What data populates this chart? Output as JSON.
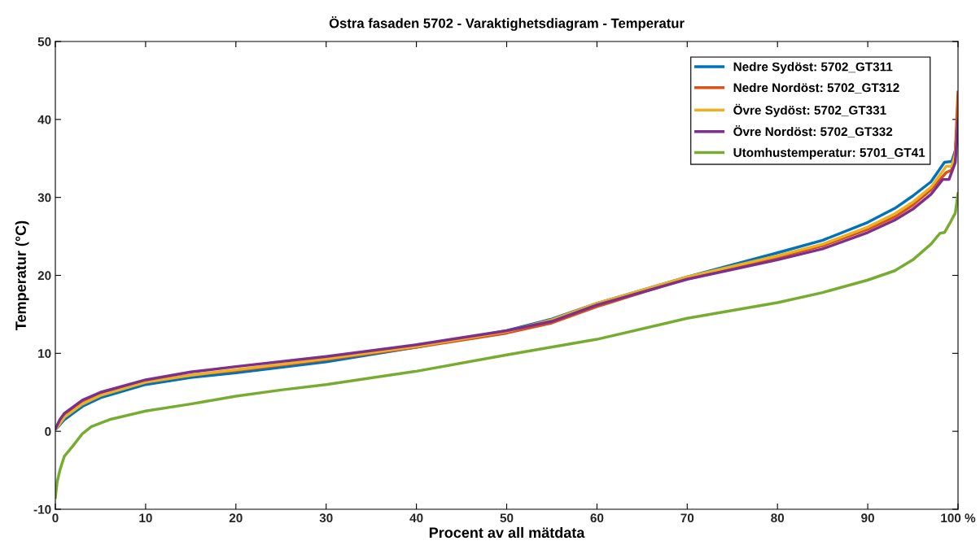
{
  "chart_data": {
    "type": "line",
    "title": "Östra fasaden 5702 - Varaktighetsdiagram - Temperatur",
    "xlabel": "Procent av all mätdata",
    "ylabel": "Temperatur (°C)",
    "xlim": [
      0,
      100
    ],
    "ylim": [
      -10,
      50
    ],
    "xticks": [
      0,
      10,
      20,
      30,
      40,
      50,
      60,
      70,
      80,
      90,
      {
        "value": 100,
        "label": "100 %"
      }
    ],
    "yticks": [
      -10,
      0,
      10,
      20,
      30,
      40,
      50
    ],
    "grid": false,
    "legend": "top right",
    "marker": "none",
    "line_style": "solid",
    "series": [
      {
        "name": "Nedre Sydöst: 5702_GT311",
        "color": "#0072bd",
        "x": [
          0,
          1,
          3,
          5,
          10,
          15,
          20,
          30,
          40,
          50,
          55,
          60,
          70,
          80,
          85,
          90,
          93,
          95,
          97,
          98.5,
          99.3,
          99.7,
          100
        ],
        "values": [
          0.2,
          1.5,
          3.2,
          4.3,
          6.0,
          6.9,
          7.5,
          8.9,
          10.8,
          12.9,
          14.4,
          16.4,
          19.8,
          22.9,
          24.5,
          26.8,
          28.6,
          30.2,
          32.0,
          34.5,
          34.6,
          36,
          40
        ]
      },
      {
        "name": "Nedre Nordöst: 5702_GT312",
        "color": "#d95319",
        "x": [
          0,
          1,
          3,
          5,
          10,
          15,
          20,
          30,
          40,
          50,
          55,
          60,
          70,
          80,
          85,
          90,
          93,
          95,
          97,
          98.7,
          99.3,
          99.7,
          100
        ],
        "values": [
          0.3,
          2.0,
          3.6,
          4.7,
          6.3,
          7.2,
          7.8,
          9.2,
          10.8,
          12.6,
          13.9,
          16.0,
          19.6,
          22.3,
          23.8,
          25.9,
          27.5,
          29.0,
          31.0,
          33.2,
          33.5,
          36,
          43.5
        ]
      },
      {
        "name": "Övre Sydöst: 5702_GT331",
        "color": "#edb120",
        "x": [
          0,
          1,
          3,
          5,
          10,
          15,
          20,
          30,
          40,
          50,
          55,
          60,
          70,
          80,
          85,
          90,
          93,
          95,
          97,
          98.7,
          99.3,
          99.7,
          100
        ],
        "values": [
          0.2,
          1.8,
          3.5,
          4.6,
          6.3,
          7.2,
          7.9,
          9.3,
          10.9,
          12.8,
          14.3,
          16.4,
          19.8,
          22.5,
          24.0,
          26.2,
          27.9,
          29.4,
          31.3,
          34.0,
          34.0,
          35.5,
          40
        ]
      },
      {
        "name": "Övre Nordöst: 5702_GT332",
        "color": "#7e2f8e",
        "x": [
          0,
          0.5,
          1,
          3,
          5,
          10,
          15,
          20,
          30,
          40,
          50,
          55,
          60,
          70,
          80,
          85,
          90,
          93,
          95,
          97,
          98.3,
          99,
          99.7,
          100
        ],
        "values": [
          0.3,
          1.5,
          2.3,
          4.0,
          5.0,
          6.6,
          7.6,
          8.3,
          9.6,
          11.1,
          12.9,
          14.1,
          16.2,
          19.5,
          22.0,
          23.4,
          25.5,
          27.1,
          28.5,
          30.4,
          32.3,
          32.3,
          34.5,
          40
        ]
      },
      {
        "name": "Utomhustemperatur: 5701_GT41",
        "color": "#77ac30",
        "x": [
          0,
          0.2,
          0.5,
          1,
          2,
          3,
          4,
          6,
          10,
          15,
          20,
          25,
          30,
          40,
          50,
          60,
          70,
          80,
          85,
          90,
          93,
          95,
          97,
          98,
          98.5,
          99,
          99.7,
          100
        ],
        "values": [
          -8.5,
          -6.5,
          -5,
          -3.2,
          -1.8,
          -0.3,
          0.6,
          1.5,
          2.6,
          3.5,
          4.5,
          5.3,
          6.0,
          7.7,
          9.8,
          11.8,
          14.5,
          16.5,
          17.8,
          19.4,
          20.6,
          22.0,
          24.0,
          25.4,
          25.5,
          26.5,
          28,
          30.5
        ]
      }
    ]
  }
}
